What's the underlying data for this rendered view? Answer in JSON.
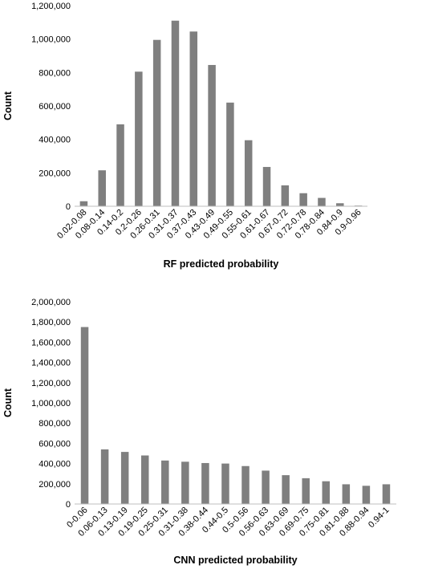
{
  "chart_data": [
    {
      "type": "bar",
      "title": "",
      "xlabel": "RF predicted probability",
      "ylabel": "Count",
      "ylim": [
        0,
        1200000
      ],
      "yticks": [
        0,
        200000,
        400000,
        600000,
        800000,
        1000000,
        1200000
      ],
      "ytick_labels": [
        "0",
        "200,000",
        "400,000",
        "600,000",
        "800,000",
        "1,000,000",
        "1,200,000"
      ],
      "categories": [
        "0.02-0.08",
        "0.08-0.14",
        "0.14-0.2",
        "0.2-0.26",
        "0.26-0.31",
        "0.31-0.37",
        "0.37-0.43",
        "0.43-0.49",
        "0.49-0.55",
        "0.55-0.61",
        "0.61-0.67",
        "0.67-0.72",
        "0.72-0.78",
        "0.78-0.84",
        "0.84-0.9",
        "0.9-0.96"
      ],
      "values": [
        30000,
        215000,
        490000,
        805000,
        995000,
        1110000,
        1045000,
        845000,
        620000,
        395000,
        235000,
        125000,
        78000,
        50000,
        18000,
        4000
      ],
      "grid": false,
      "legend": "none",
      "bar_color": "#7f7f7f"
    },
    {
      "type": "bar",
      "title": "",
      "xlabel": "CNN predicted probability",
      "ylabel": "Count",
      "ylim": [
        0,
        2000000
      ],
      "yticks": [
        0,
        200000,
        400000,
        600000,
        800000,
        1000000,
        1200000,
        1400000,
        1600000,
        1800000,
        2000000
      ],
      "ytick_labels": [
        "0",
        "200,000",
        "400,000",
        "600,000",
        "800,000",
        "1,000,000",
        "1,200,000",
        "1,400,000",
        "1,600,000",
        "1,800,000",
        "2,000,000"
      ],
      "categories": [
        "0-0.06",
        "0.06-0.13",
        "0.13-0.19",
        "0.19-0.25",
        "0.25-0.31",
        "0.31-0.38",
        "0.38-0.44",
        "0.44-0.5",
        "0.5-0.56",
        "0.56-0.63",
        "0.63-0.69",
        "0.69-0.75",
        "0.75-0.81",
        "0.81-0.88",
        "0.88-0.94",
        "0.94-1"
      ],
      "values": [
        1750000,
        540000,
        515000,
        480000,
        430000,
        418000,
        405000,
        400000,
        375000,
        330000,
        285000,
        255000,
        225000,
        195000,
        180000,
        195000
      ],
      "grid": false,
      "legend": "none",
      "bar_color": "#7f7f7f"
    }
  ]
}
